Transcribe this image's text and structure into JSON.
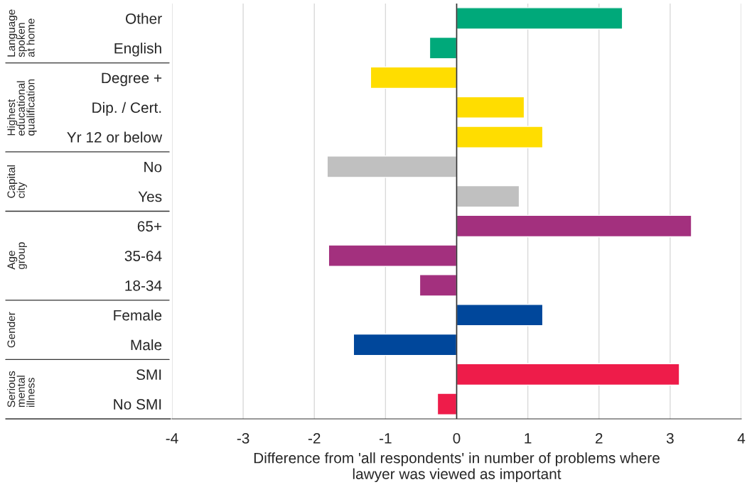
{
  "chart_data": {
    "type": "bar",
    "orientation": "horizontal",
    "categories": [
      "Other",
      "English",
      "Degree +",
      "Dip. / Cert.",
      "Yr 12 or below",
      "No",
      "Yes",
      "65+",
      "35-64",
      "18-34",
      "Female",
      "Male",
      "SMI",
      "No SMI"
    ],
    "series": [
      {
        "color": "#00a97a",
        "values": [
          2.33,
          -0.38,
          null,
          null,
          null,
          null,
          null,
          null,
          null,
          null,
          null,
          null,
          null,
          null
        ]
      },
      {
        "color": "#ffdd00",
        "values": [
          null,
          null,
          -1.21,
          0.95,
          1.21,
          null,
          null,
          null,
          null,
          null,
          null,
          null,
          null,
          null
        ]
      },
      {
        "color": "#c0c0c0",
        "values": [
          null,
          null,
          null,
          null,
          null,
          -1.82,
          0.88,
          null,
          null,
          null,
          null,
          null,
          null,
          null
        ]
      },
      {
        "color": "#a3307e",
        "values": [
          null,
          null,
          null,
          null,
          null,
          null,
          null,
          3.3,
          -1.8,
          -0.52,
          null,
          null,
          null,
          null
        ]
      },
      {
        "color": "#00479b",
        "values": [
          null,
          null,
          null,
          null,
          null,
          null,
          null,
          null,
          null,
          null,
          1.21,
          -1.45,
          null,
          null
        ]
      },
      {
        "color": "#ee1c4a",
        "values": [
          null,
          null,
          null,
          null,
          null,
          null,
          null,
          null,
          null,
          null,
          null,
          null,
          3.13,
          -0.27
        ]
      }
    ],
    "xlim": [
      -4,
      4
    ],
    "xticks": [
      -4,
      -3,
      -2,
      -1,
      0,
      1,
      2,
      3,
      4
    ],
    "xlabel": "Difference from 'all respondents' in number of problems where\nlawyer was viewed as important",
    "annotations": [
      "Language\nspoken\nat home",
      "Highest\neducational\nqualification",
      "Capital\ncity",
      "Age\ngroup",
      "Gender",
      "Serious\nmental\nillness"
    ],
    "grid": "x",
    "legend": false,
    "ref_lines": [
      {
        "axis": "x",
        "value": 0,
        "color": "#333333"
      }
    ]
  }
}
